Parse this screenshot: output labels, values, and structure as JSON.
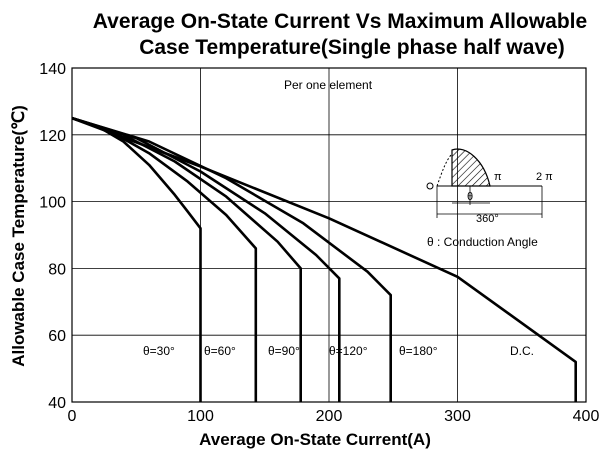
{
  "chart_data": {
    "type": "line",
    "title_line1": "Average On-State Current Vs Maximum Allowable",
    "title_line2": "Case Temperature(Single phase half wave)",
    "xlabel": "Average On-State Current(A)",
    "ylabel": "Allowable Case Temperature(℃)",
    "xlim": [
      0,
      400
    ],
    "ylim": [
      40,
      140
    ],
    "xticks": [
      0,
      100,
      200,
      300,
      400
    ],
    "yticks": [
      40,
      60,
      80,
      100,
      120,
      140
    ],
    "xtick_labels": [
      "0",
      "100",
      "200",
      "300",
      "400"
    ],
    "ytick_labels": [
      "40",
      "60",
      "80",
      "100",
      "120",
      "140"
    ],
    "grid": true,
    "annotation": "Per one element",
    "series": [
      {
        "name": "θ=30°",
        "x": [
          0,
          20,
          40,
          60,
          80,
          90,
          100,
          100
        ],
        "y": [
          125,
          122.5,
          118,
          111,
          102,
          97,
          92,
          40
        ]
      },
      {
        "name": "θ=60°",
        "x": [
          0,
          30,
          60,
          90,
          120,
          143,
          143
        ],
        "y": [
          125,
          121,
          114.5,
          106,
          96,
          86,
          40
        ]
      },
      {
        "name": "θ=90°",
        "x": [
          0,
          40,
          80,
          120,
          160,
          178,
          178
        ],
        "y": [
          125,
          120,
          112,
          101.5,
          88,
          80,
          40
        ]
      },
      {
        "name": "θ=120°",
        "x": [
          0,
          50,
          100,
          150,
          190,
          208,
          208
        ],
        "y": [
          125,
          119,
          109,
          96.5,
          84,
          77,
          40
        ]
      },
      {
        "name": "θ=180°",
        "x": [
          0,
          60,
          120,
          180,
          230,
          248,
          248
        ],
        "y": [
          125,
          118,
          107,
          93.5,
          79,
          72,
          40
        ]
      },
      {
        "name": "D.C.",
        "x": [
          0,
          100,
          200,
          300,
          392,
          392
        ],
        "y": [
          125,
          110.5,
          95,
          77.5,
          52,
          40
        ]
      }
    ],
    "series_label_text": [
      "θ=30°",
      "θ=60°",
      "θ=90°",
      "θ=120°",
      "θ=180°",
      "D.C."
    ],
    "inset": {
      "pi_label": "π",
      "two_pi_label": "2 π",
      "theta_label": "θ",
      "degrees_label": "360°",
      "legend_text": "θ : Conduction Angle"
    }
  }
}
